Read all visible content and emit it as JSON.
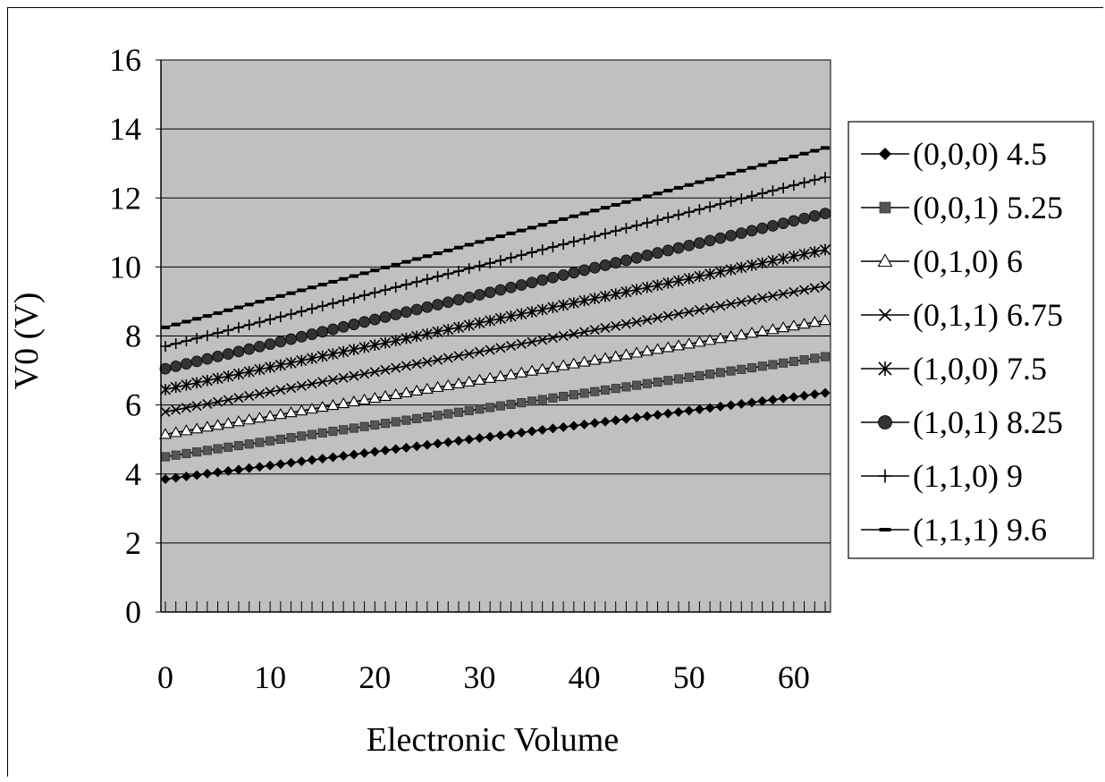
{
  "chart_data": {
    "type": "line",
    "title": "",
    "xlabel": "Electronic Volume",
    "ylabel": "V0 (V)",
    "xlim": [
      0,
      63
    ],
    "ylim": [
      0,
      16
    ],
    "x_ticks": [
      "0",
      "10",
      "20",
      "30",
      "40",
      "50",
      "60"
    ],
    "y_ticks": [
      "0",
      "2",
      "4",
      "6",
      "8",
      "10",
      "12",
      "14",
      "16"
    ],
    "grid": "horizontal",
    "legend_position": "right",
    "plot_background": "#c0c0c0",
    "series": [
      {
        "name": "(0,0,0) 4.5",
        "marker": "diamond",
        "start": 3.85,
        "end": 6.35
      },
      {
        "name": "(0,0,1) 5.25",
        "marker": "square",
        "start": 4.5,
        "end": 7.4
      },
      {
        "name": "(0,1,0) 6",
        "marker": "triangle",
        "start": 5.15,
        "end": 8.45
      },
      {
        "name": "(0,1,1) 6.75",
        "marker": "x",
        "start": 5.8,
        "end": 9.45
      },
      {
        "name": "(1,0,0) 7.5",
        "marker": "star",
        "start": 6.45,
        "end": 10.5
      },
      {
        "name": "(1,0,1) 8.25",
        "marker": "circle",
        "start": 7.05,
        "end": 11.55
      },
      {
        "name": "(1,1,0) 9",
        "marker": "plus",
        "start": 7.7,
        "end": 12.6
      },
      {
        "name": "(1,1,1) 9.6",
        "marker": "dash",
        "start": 8.25,
        "end": 13.45
      }
    ]
  }
}
